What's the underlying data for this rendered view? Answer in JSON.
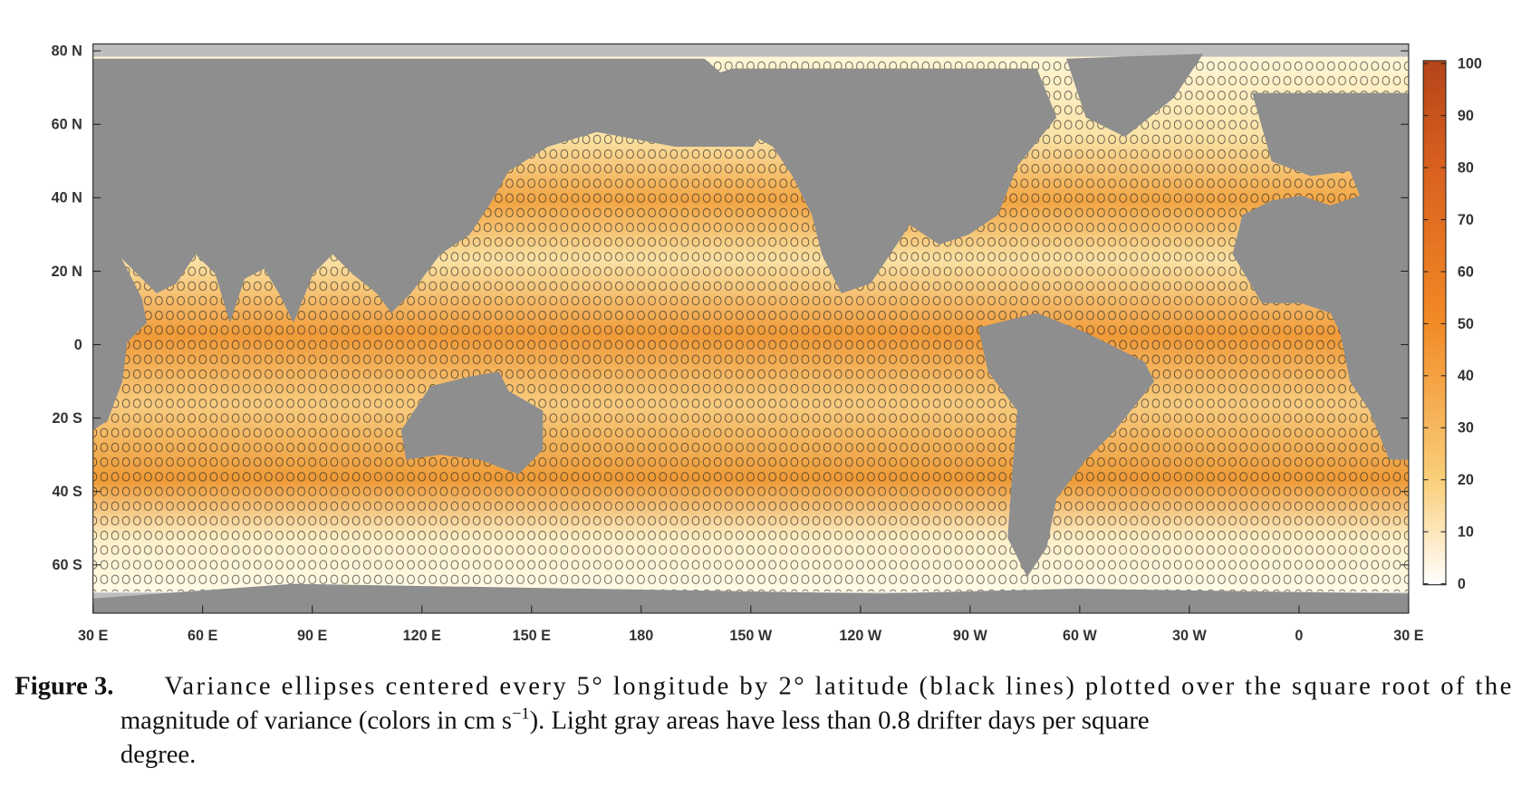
{
  "figure": {
    "lat_ticks": [
      "80 N",
      "60 N",
      "40 N",
      "20 N",
      "0",
      "20 S",
      "40 S",
      "60 S"
    ],
    "lon_ticks": [
      "30 E",
      "60 E",
      "90 E",
      "120 E",
      "150 E",
      "180",
      "150 W",
      "120 W",
      "90 W",
      "60 W",
      "30 W",
      "0",
      "30 E"
    ],
    "colorbar": {
      "lim": [
        0,
        100
      ],
      "ticks": [
        0,
        10,
        20,
        30,
        40,
        50,
        60,
        70,
        80,
        90,
        100
      ]
    }
  },
  "caption": {
    "label": "Figure 3.",
    "line1": "Variance ellipses centered every 5° longitude by 2° latitude (black lines) plotted over the square root of the",
    "line2_before": "magnitude of variance (colors in cm s",
    "superscript": "−1",
    "line2_after": "). Light gray areas have less than 0.8 drifter days per square",
    "line3": "degree."
  }
}
